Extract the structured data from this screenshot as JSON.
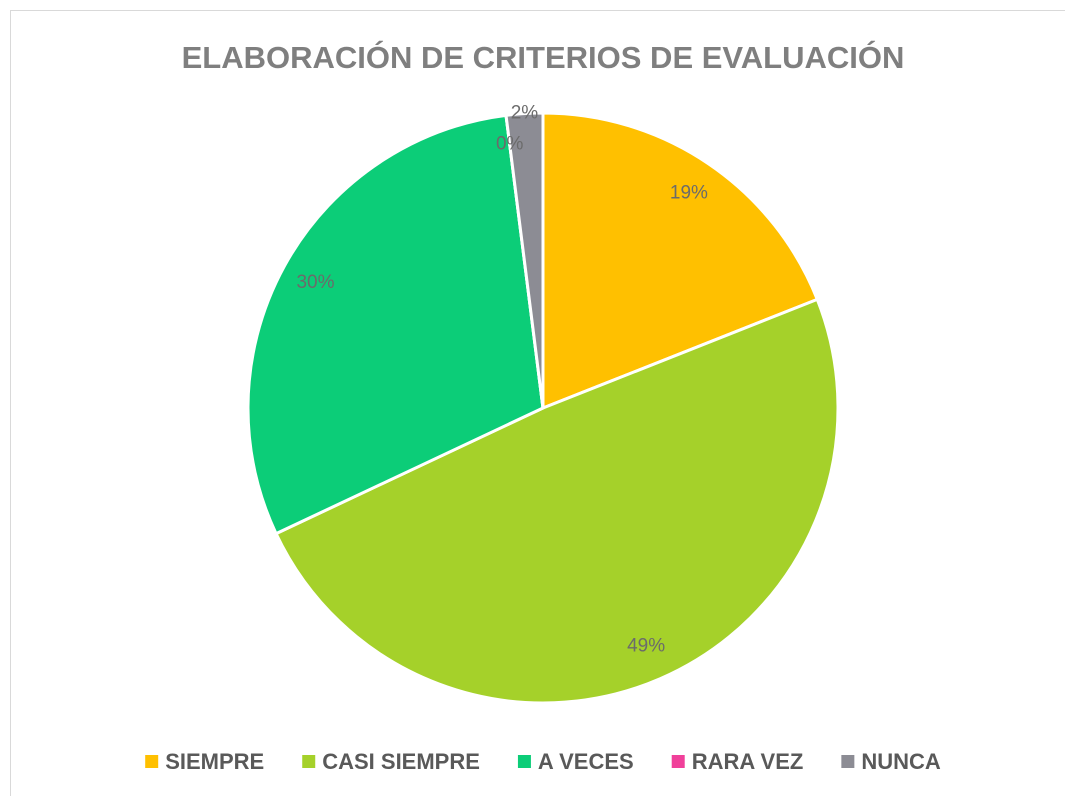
{
  "chart_data": {
    "type": "pie",
    "title": "ELABORACIÓN DE CRITERIOS DE EVALUACIÓN",
    "categories": [
      "SIEMPRE",
      "CASI SIEMPRE",
      "A VECES",
      "RARA VEZ",
      "NUNCA"
    ],
    "values": [
      19,
      49,
      30,
      0,
      2
    ],
    "value_labels": [
      "19%",
      "49%",
      "30%",
      "0%",
      "2%"
    ],
    "colors": [
      "#ffc000",
      "#a5d12a",
      "#0ccd78",
      "#f0409a",
      "#8c8c94"
    ],
    "legend": "bottom"
  }
}
